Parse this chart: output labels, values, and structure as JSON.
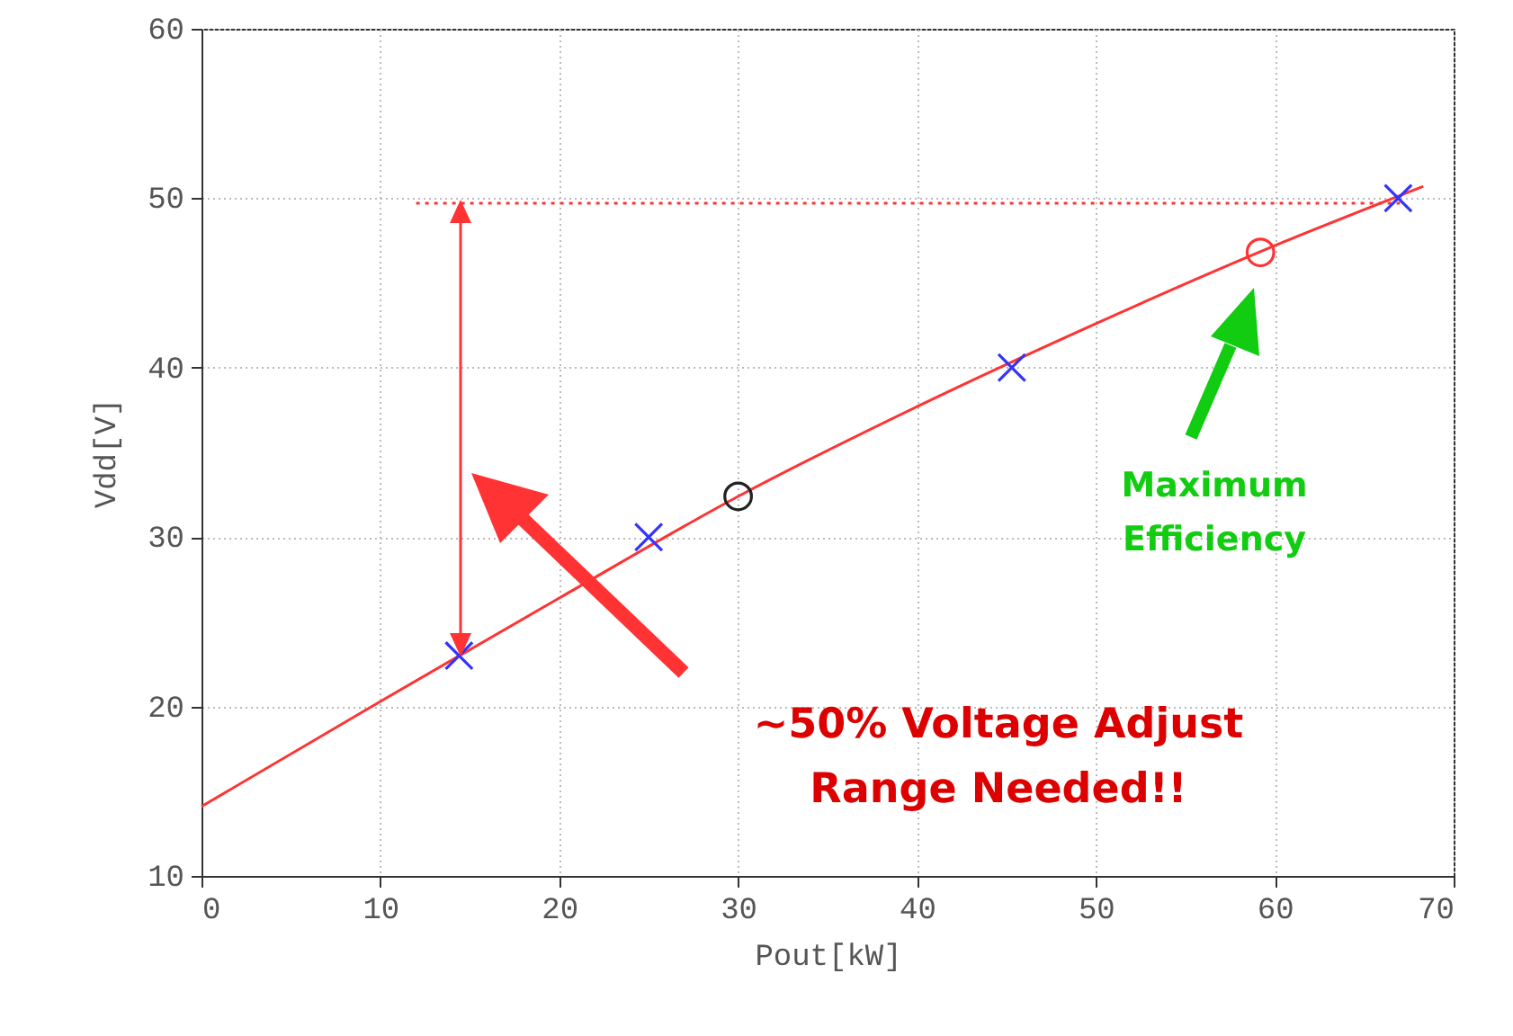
{
  "chart_data": {
    "type": "scatter",
    "xlabel": "Pout[kW]",
    "ylabel": "Vdd[V]",
    "xlim": [
      0,
      70
    ],
    "ylim": [
      10,
      60
    ],
    "xticks": [
      0,
      10,
      20,
      30,
      40,
      50,
      60,
      70
    ],
    "yticks": [
      10,
      20,
      30,
      40,
      50,
      60
    ],
    "grid": true,
    "series": [
      {
        "type": "line",
        "color": "#ff3333",
        "line_style": "solid",
        "x": [
          0,
          10,
          20,
          30,
          40,
          50,
          60,
          68.3
        ],
        "values": [
          14.1,
          20.3,
          26.4,
          32.4,
          37.7,
          42.6,
          47.2,
          50.7
        ]
      },
      {
        "type": "line",
        "color": "#ff3333",
        "line_style": "dotted",
        "x": [
          12,
          67
        ],
        "values": [
          49.7,
          49.7
        ]
      },
      {
        "color": "#3333ff",
        "marker": "cross",
        "x": [
          14.4,
          25,
          45.3,
          66.9
        ],
        "values": [
          23,
          30,
          40,
          50
        ]
      },
      {
        "color": "#222222",
        "marker": "circle",
        "x": [
          30
        ],
        "values": [
          32.4
        ]
      },
      {
        "color": "#ff3333",
        "marker": "circle",
        "x": [
          59.2
        ],
        "values": [
          46.8
        ]
      }
    ],
    "annotations": [
      "Maximum Efficiency",
      "~50% Voltage Adjust Range Needed!!"
    ]
  }
}
